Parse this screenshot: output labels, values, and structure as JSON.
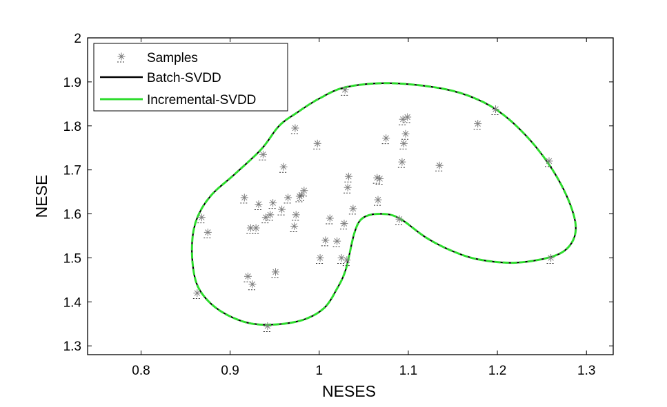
{
  "chart_data": {
    "type": "scatter",
    "xlabel": "NESES",
    "ylabel": "NESE",
    "xlim": [
      0.74,
      1.33
    ],
    "ylim": [
      1.28,
      2.0
    ],
    "xticks": [
      "0.8",
      "0.9",
      "1",
      "1.1",
      "1.2",
      "1.3"
    ],
    "xtick_values": [
      0.8,
      0.9,
      1.0,
      1.1,
      1.2,
      1.3
    ],
    "yticks": [
      "1.3",
      "1.4",
      "1.5",
      "1.6",
      "1.7",
      "1.8",
      "1.9",
      "2"
    ],
    "ytick_values": [
      1.3,
      1.4,
      1.5,
      1.6,
      1.7,
      1.8,
      1.9,
      2.0
    ],
    "grid": false,
    "legend_position": "top-left",
    "series": [
      {
        "name": "Samples",
        "kind": "points",
        "marker": "asterisk",
        "color": "#7f7f7f",
        "points": [
          [
            0.863,
            1.42
          ],
          [
            0.868,
            1.592
          ],
          [
            0.875,
            1.558
          ],
          [
            0.916,
            1.637
          ],
          [
            0.92,
            1.458
          ],
          [
            0.923,
            1.568
          ],
          [
            0.925,
            1.44
          ],
          [
            0.929,
            1.568
          ],
          [
            0.932,
            1.622
          ],
          [
            0.937,
            1.735
          ],
          [
            0.94,
            1.592
          ],
          [
            0.942,
            1.345
          ],
          [
            0.945,
            1.598
          ],
          [
            0.948,
            1.625
          ],
          [
            0.951,
            1.468
          ],
          [
            0.958,
            1.61
          ],
          [
            0.96,
            1.707
          ],
          [
            0.965,
            1.637
          ],
          [
            0.972,
            1.572
          ],
          [
            0.973,
            1.795
          ],
          [
            0.974,
            1.598
          ],
          [
            0.978,
            1.64
          ],
          [
            0.98,
            1.643
          ],
          [
            0.983,
            1.653
          ],
          [
            0.998,
            1.76
          ],
          [
            1.001,
            1.5
          ],
          [
            1.007,
            1.54
          ],
          [
            1.012,
            1.59
          ],
          [
            1.02,
            1.538
          ],
          [
            1.025,
            1.5
          ],
          [
            1.028,
            1.578
          ],
          [
            1.029,
            1.882
          ],
          [
            1.031,
            1.495
          ],
          [
            1.032,
            1.66
          ],
          [
            1.033,
            1.685
          ],
          [
            1.038,
            1.612
          ],
          [
            1.065,
            1.682
          ],
          [
            1.066,
            1.632
          ],
          [
            1.068,
            1.68
          ],
          [
            1.075,
            1.772
          ],
          [
            1.09,
            1.588
          ],
          [
            1.093,
            1.718
          ],
          [
            1.094,
            1.815
          ],
          [
            1.095,
            1.76
          ],
          [
            1.097,
            1.782
          ],
          [
            1.099,
            1.82
          ],
          [
            1.135,
            1.71
          ],
          [
            1.178,
            1.805
          ],
          [
            1.198,
            1.838
          ],
          [
            1.258,
            1.72
          ],
          [
            1.26,
            1.5
          ]
        ]
      },
      {
        "name": "Batch-SVDD",
        "kind": "line",
        "color": "#000000",
        "points": [
          [
            1.03,
            1.475
          ],
          [
            1.04,
            1.56
          ],
          [
            1.05,
            1.592
          ],
          [
            1.07,
            1.6
          ],
          [
            1.09,
            1.59
          ],
          [
            1.12,
            1.546
          ],
          [
            1.15,
            1.515
          ],
          [
            1.18,
            1.496
          ],
          [
            1.22,
            1.489
          ],
          [
            1.26,
            1.502
          ],
          [
            1.28,
            1.525
          ],
          [
            1.288,
            1.565
          ],
          [
            1.282,
            1.62
          ],
          [
            1.265,
            1.69
          ],
          [
            1.24,
            1.76
          ],
          [
            1.21,
            1.82
          ],
          [
            1.18,
            1.858
          ],
          [
            1.14,
            1.884
          ],
          [
            1.08,
            1.897
          ],
          [
            1.03,
            1.888
          ],
          [
            1.0,
            1.862
          ],
          [
            0.975,
            1.83
          ],
          [
            0.955,
            1.8
          ],
          [
            0.935,
            1.747
          ],
          [
            0.905,
            1.69
          ],
          [
            0.88,
            1.645
          ],
          [
            0.865,
            1.6
          ],
          [
            0.858,
            1.55
          ],
          [
            0.858,
            1.485
          ],
          [
            0.865,
            1.43
          ],
          [
            0.885,
            1.385
          ],
          [
            0.915,
            1.355
          ],
          [
            0.945,
            1.348
          ],
          [
            0.98,
            1.358
          ],
          [
            1.005,
            1.385
          ],
          [
            1.02,
            1.43
          ],
          [
            1.03,
            1.475
          ]
        ]
      },
      {
        "name": "Incremental-SVDD",
        "kind": "line",
        "color": "#2edc2e",
        "points": [
          [
            1.03,
            1.475
          ],
          [
            1.04,
            1.56
          ],
          [
            1.05,
            1.592
          ],
          [
            1.07,
            1.6
          ],
          [
            1.09,
            1.59
          ],
          [
            1.12,
            1.546
          ],
          [
            1.15,
            1.515
          ],
          [
            1.18,
            1.496
          ],
          [
            1.22,
            1.489
          ],
          [
            1.26,
            1.502
          ],
          [
            1.28,
            1.525
          ],
          [
            1.288,
            1.565
          ],
          [
            1.282,
            1.62
          ],
          [
            1.265,
            1.69
          ],
          [
            1.24,
            1.76
          ],
          [
            1.21,
            1.82
          ],
          [
            1.18,
            1.858
          ],
          [
            1.14,
            1.884
          ],
          [
            1.08,
            1.897
          ],
          [
            1.03,
            1.888
          ],
          [
            1.0,
            1.862
          ],
          [
            0.975,
            1.83
          ],
          [
            0.955,
            1.8
          ],
          [
            0.935,
            1.747
          ],
          [
            0.905,
            1.69
          ],
          [
            0.88,
            1.645
          ],
          [
            0.865,
            1.6
          ],
          [
            0.858,
            1.55
          ],
          [
            0.858,
            1.485
          ],
          [
            0.865,
            1.43
          ],
          [
            0.885,
            1.385
          ],
          [
            0.915,
            1.355
          ],
          [
            0.945,
            1.348
          ],
          [
            0.98,
            1.358
          ],
          [
            1.005,
            1.385
          ],
          [
            1.02,
            1.43
          ],
          [
            1.03,
            1.475
          ]
        ]
      }
    ]
  }
}
